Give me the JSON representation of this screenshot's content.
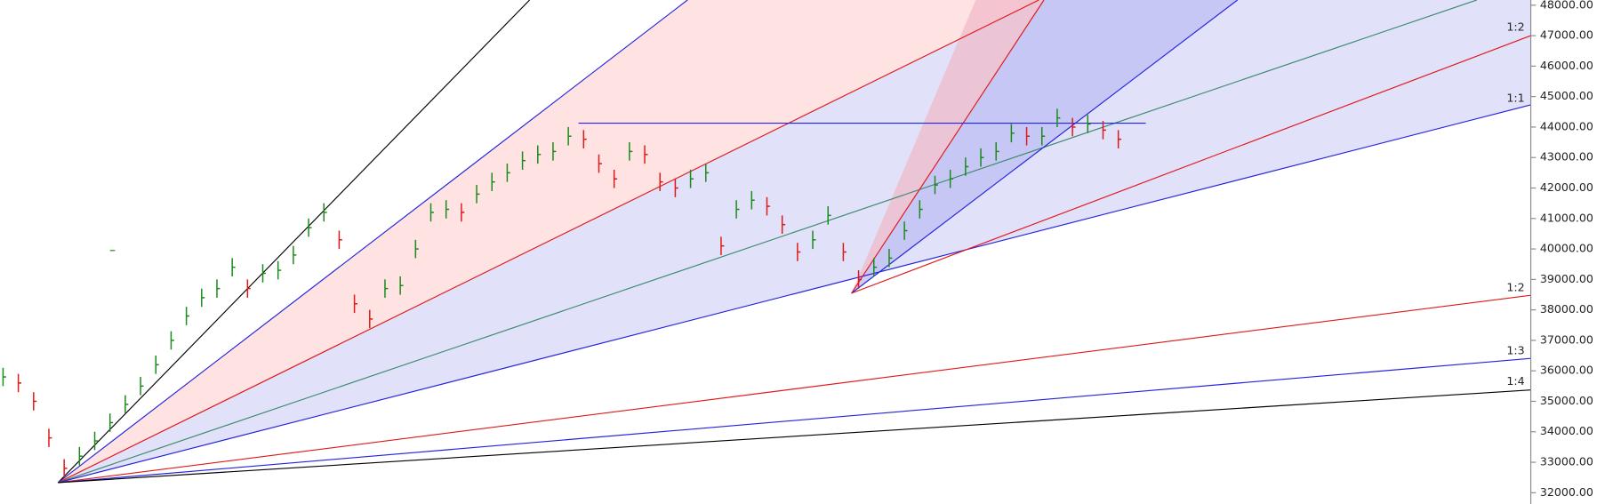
{
  "chart_data": {
    "type": "ohlc",
    "values": [
      35800,
      35600,
      35000,
      33800,
      32800,
      33200,
      33700,
      34300,
      34900,
      35500,
      36200,
      37000,
      37800,
      38400,
      38700,
      39400,
      38700,
      39200,
      39300,
      39800,
      40700,
      41200,
      40300,
      38200,
      37700,
      38700,
      38800,
      40000,
      41200,
      41300,
      41200,
      41800,
      42200,
      42500,
      42900,
      43100,
      43200,
      43700,
      43600,
      42800,
      42300,
      43200,
      43100,
      42200,
      42000,
      42300,
      42500,
      40100,
      41300,
      41600,
      41400,
      40800,
      39900,
      40300,
      41100,
      39900,
      39000,
      39400,
      39700,
      40600,
      41300,
      42100,
      42300,
      42700,
      43000,
      43200,
      43800,
      43700,
      43700,
      44300,
      44000,
      44100,
      43900,
      43600
    ],
    "ylim": [
      31630,
      48170
    ],
    "yticks": [
      {
        "value": 32000,
        "label": "32000.00"
      },
      {
        "value": 33000,
        "label": "33000.00"
      },
      {
        "value": 34000,
        "label": "34000.00"
      },
      {
        "value": 35000,
        "label": "35000.00"
      },
      {
        "value": 36000,
        "label": "36000.00"
      },
      {
        "value": 37000,
        "label": "37000.00"
      },
      {
        "value": 38000,
        "label": "38000.00"
      },
      {
        "value": 39000,
        "label": "39000.00"
      },
      {
        "value": 40000,
        "label": "40000.00"
      },
      {
        "value": 41000,
        "label": "41000.00"
      },
      {
        "value": 42000,
        "label": "42000.00"
      },
      {
        "value": 43000,
        "label": "43000.00"
      },
      {
        "value": 44000,
        "label": "44000.00"
      },
      {
        "value": 45000,
        "label": "45000.00"
      },
      {
        "value": 46000,
        "label": "46000.00"
      },
      {
        "value": 47000,
        "label": "47000.00"
      },
      {
        "value": 48000,
        "label": "48000.00"
      }
    ],
    "annotations": [
      "1:2",
      "1:1",
      "1:2",
      "1:3",
      "1:4"
    ],
    "up_color": "#1a8a1a",
    "down_color": "#e01818"
  }
}
